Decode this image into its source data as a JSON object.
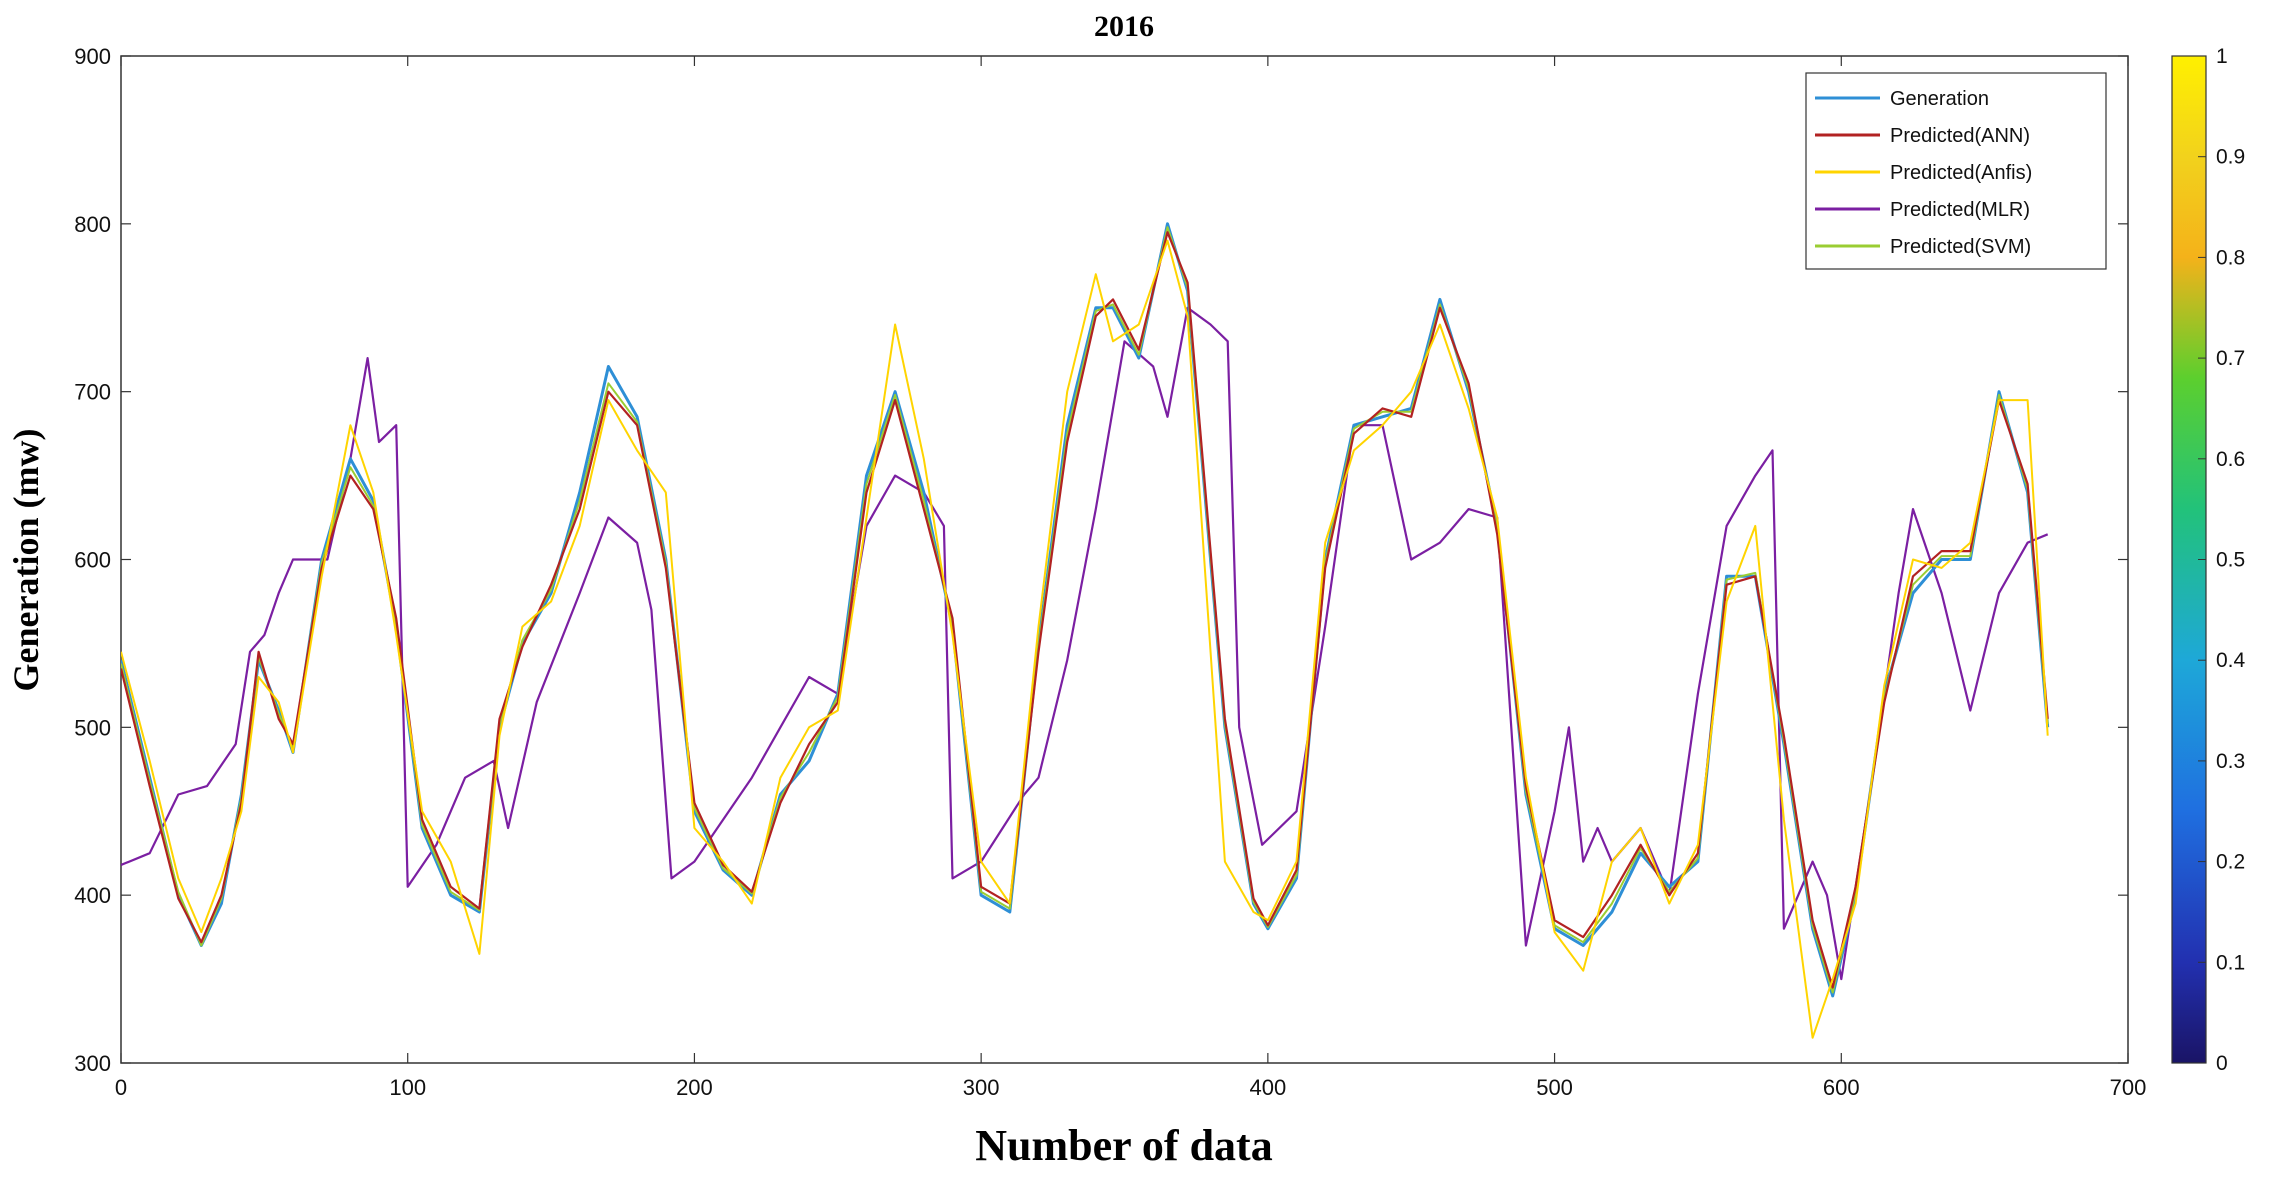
{
  "chart_data": {
    "type": "line",
    "title": "2016",
    "xlabel": "Number of data",
    "ylabel": "Generation (mw)",
    "xlim": [
      0,
      700
    ],
    "ylim": [
      300,
      900
    ],
    "xticks": [
      "0",
      "100",
      "200",
      "300",
      "400",
      "500",
      "600",
      "700"
    ],
    "yticks": [
      "300",
      "400",
      "500",
      "600",
      "700",
      "800",
      "900"
    ],
    "grid": false,
    "legend_position": "top-right",
    "colorbar": {
      "range": [
        0,
        1
      ],
      "ticks": [
        "0",
        "0.1",
        "0.2",
        "0.3",
        "0.4",
        "0.5",
        "0.6",
        "0.7",
        "0.8",
        "0.9",
        "1"
      ],
      "colormap": "jet-like (dark blue to yellow)"
    },
    "series": [
      {
        "name": "Generation",
        "color": "#2e8fd6",
        "x": [
          0,
          10,
          20,
          28,
          35,
          42,
          48,
          55,
          60,
          70,
          80,
          88,
          96,
          105,
          115,
          125,
          132,
          140,
          150,
          160,
          170,
          180,
          190,
          200,
          210,
          220,
          230,
          240,
          250,
          260,
          270,
          280,
          290,
          300,
          310,
          320,
          330,
          340,
          346,
          355,
          365,
          372,
          385,
          395,
          400,
          410,
          420,
          430,
          440,
          450,
          460,
          470,
          480,
          490,
          500,
          510,
          520,
          530,
          540,
          550,
          560,
          570,
          580,
          590,
          597,
          605,
          615,
          625,
          635,
          645,
          655,
          665,
          672
        ],
        "values": [
          540,
          470,
          400,
          370,
          395,
          460,
          540,
          510,
          485,
          600,
          660,
          635,
          560,
          440,
          400,
          390,
          500,
          550,
          580,
          640,
          715,
          685,
          600,
          450,
          415,
          400,
          460,
          480,
          520,
          650,
          700,
          640,
          560,
          400,
          390,
          550,
          680,
          750,
          750,
          720,
          800,
          760,
          500,
          395,
          380,
          410,
          600,
          680,
          685,
          690,
          755,
          700,
          620,
          460,
          380,
          370,
          390,
          425,
          405,
          420,
          590,
          590,
          490,
          380,
          340,
          400,
          520,
          580,
          600,
          600,
          700,
          640,
          500
        ]
      },
      {
        "name": "Predicted(ANN)",
        "color": "#b22222",
        "x": [
          0,
          10,
          20,
          28,
          35,
          42,
          48,
          55,
          60,
          70,
          80,
          88,
          96,
          105,
          115,
          125,
          132,
          140,
          150,
          160,
          170,
          180,
          190,
          200,
          210,
          220,
          230,
          240,
          250,
          260,
          270,
          280,
          290,
          300,
          310,
          320,
          330,
          340,
          346,
          355,
          365,
          372,
          385,
          395,
          400,
          410,
          420,
          430,
          440,
          450,
          460,
          470,
          480,
          490,
          500,
          510,
          520,
          530,
          540,
          550,
          560,
          570,
          580,
          590,
          597,
          605,
          615,
          625,
          635,
          645,
          655,
          665,
          672
        ],
        "values": [
          535,
          465,
          398,
          372,
          400,
          455,
          545,
          505,
          490,
          595,
          650,
          630,
          565,
          445,
          405,
          392,
          505,
          548,
          585,
          630,
          700,
          680,
          595,
          455,
          418,
          402,
          455,
          490,
          515,
          640,
          695,
          630,
          565,
          405,
          395,
          545,
          670,
          745,
          755,
          725,
          795,
          765,
          505,
          398,
          382,
          415,
          595,
          675,
          690,
          685,
          750,
          705,
          615,
          465,
          385,
          375,
          400,
          430,
          400,
          425,
          585,
          590,
          495,
          385,
          345,
          405,
          515,
          590,
          605,
          605,
          695,
          645,
          505
        ]
      },
      {
        "name": "Predicted(Anfis)",
        "color": "#ffd400",
        "x": [
          0,
          10,
          20,
          28,
          35,
          42,
          48,
          55,
          60,
          70,
          80,
          88,
          96,
          105,
          115,
          125,
          132,
          140,
          150,
          160,
          170,
          180,
          190,
          200,
          210,
          220,
          230,
          240,
          250,
          260,
          270,
          280,
          290,
          300,
          310,
          320,
          330,
          340,
          346,
          355,
          365,
          372,
          385,
          395,
          400,
          410,
          420,
          430,
          440,
          450,
          460,
          470,
          480,
          490,
          500,
          510,
          520,
          530,
          540,
          550,
          560,
          570,
          580,
          590,
          597,
          605,
          615,
          625,
          635,
          645,
          655,
          665,
          672
        ],
        "values": [
          545,
          480,
          410,
          378,
          410,
          450,
          530,
          515,
          485,
          590,
          680,
          640,
          555,
          450,
          420,
          365,
          495,
          560,
          575,
          620,
          695,
          665,
          640,
          440,
          420,
          395,
          470,
          500,
          510,
          625,
          740,
          660,
          555,
          420,
          395,
          560,
          700,
          770,
          730,
          740,
          790,
          745,
          420,
          390,
          385,
          420,
          610,
          665,
          680,
          700,
          740,
          690,
          625,
          470,
          378,
          355,
          420,
          440,
          395,
          430,
          575,
          620,
          445,
          315,
          350,
          395,
          525,
          600,
          595,
          610,
          695,
          695,
          495
        ]
      },
      {
        "name": "Predicted(MLR)",
        "color": "#7b1fa2",
        "x": [
          0,
          10,
          20,
          30,
          40,
          45,
          50,
          55,
          60,
          65,
          72,
          80,
          86,
          90,
          96,
          100,
          110,
          120,
          130,
          135,
          145,
          160,
          170,
          180,
          185,
          192,
          200,
          220,
          230,
          240,
          250,
          260,
          270,
          280,
          287,
          290,
          300,
          315,
          320,
          330,
          340,
          350,
          360,
          365,
          372,
          380,
          386,
          390,
          398,
          410,
          420,
          430,
          440,
          450,
          460,
          470,
          480,
          490,
          500,
          505,
          510,
          515,
          520,
          530,
          540,
          550,
          560,
          570,
          576,
          580,
          590,
          595,
          600,
          610,
          620,
          625,
          635,
          645,
          655,
          665,
          672
        ],
        "values": [
          418,
          425,
          460,
          465,
          490,
          545,
          555,
          580,
          600,
          600,
          600,
          660,
          720,
          670,
          680,
          405,
          430,
          470,
          480,
          440,
          515,
          580,
          625,
          610,
          570,
          410,
          420,
          470,
          500,
          530,
          520,
          620,
          650,
          640,
          620,
          410,
          420,
          460,
          470,
          540,
          630,
          730,
          715,
          685,
          750,
          740,
          730,
          500,
          430,
          450,
          560,
          680,
          680,
          600,
          610,
          630,
          625,
          370,
          450,
          500,
          420,
          440,
          420,
          440,
          400,
          520,
          620,
          650,
          665,
          380,
          420,
          400,
          350,
          460,
          580,
          630,
          580,
          510,
          580,
          610,
          615
        ]
      },
      {
        "name": "Predicted(SVM)",
        "color": "#9acd32",
        "x": [
          0,
          10,
          20,
          28,
          35,
          42,
          48,
          55,
          60,
          70,
          80,
          88,
          96,
          105,
          115,
          125,
          132,
          140,
          150,
          160,
          170,
          180,
          190,
          200,
          210,
          220,
          230,
          240,
          250,
          260,
          270,
          280,
          290,
          300,
          310,
          320,
          330,
          340,
          346,
          355,
          365,
          372,
          385,
          395,
          400,
          410,
          420,
          430,
          440,
          450,
          460,
          470,
          480,
          490,
          500,
          510,
          520,
          530,
          540,
          550,
          560,
          570,
          580,
          590,
          597,
          605,
          615,
          625,
          635,
          645,
          655,
          665,
          672
        ],
        "values": [
          538,
          468,
          402,
          370,
          398,
          458,
          542,
          508,
          488,
          598,
          655,
          632,
          562,
          442,
          402,
          391,
          502,
          552,
          582,
          635,
          705,
          682,
          598,
          452,
          416,
          401,
          458,
          485,
          518,
          645,
          698,
          635,
          562,
          402,
          392,
          548,
          675,
          748,
          752,
          722,
          798,
          762,
          502,
          396,
          381,
          412,
          598,
          678,
          688,
          688,
          752,
          702,
          618,
          462,
          382,
          372,
          395,
          428,
          402,
          422,
          588,
          592,
          492,
          382,
          342,
          402,
          518,
          585,
          602,
          602,
          698,
          642,
          502
        ]
      }
    ]
  }
}
